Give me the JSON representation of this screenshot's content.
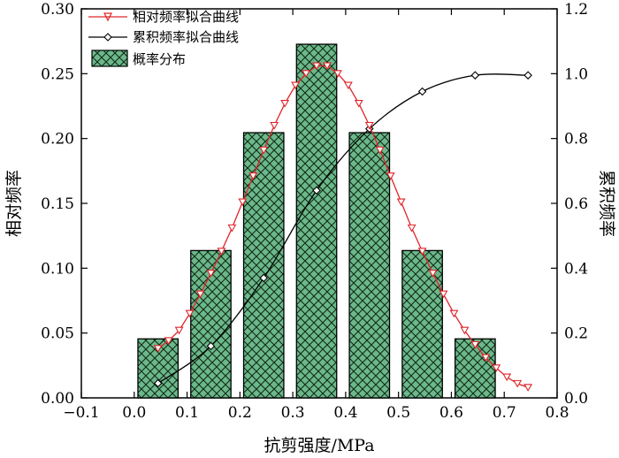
{
  "chart_data": {
    "type": "bar",
    "title": "",
    "xlabel": "抗剪强度/MPa",
    "ylabel_left": "相对频率",
    "ylabel_right": "累积频率",
    "xlim": [
      -0.1,
      0.8
    ],
    "ylim_left": [
      0,
      0.3
    ],
    "ylim_right": [
      0,
      1.2
    ],
    "x_ticks": [
      -0.1,
      0.0,
      0.1,
      0.2,
      0.3,
      0.4,
      0.5,
      0.6,
      0.7,
      0.8
    ],
    "x_tick_labels": [
      "−0.1",
      "0.0",
      "0.1",
      "0.2",
      "0.3",
      "0.4",
      "0.5",
      "0.6",
      "0.7",
      "0.8"
    ],
    "y_left_ticks": [
      0,
      0.05,
      0.1,
      0.15,
      0.2,
      0.25,
      0.3
    ],
    "y_left_tick_labels": [
      "0.00",
      "0.05",
      "0.10",
      "0.15",
      "0.20",
      "0.25",
      "0.30"
    ],
    "y_right_ticks": [
      0,
      0.2,
      0.4,
      0.6,
      0.8,
      1.0,
      1.2
    ],
    "y_right_tick_labels": [
      "0.0",
      "0.2",
      "0.4",
      "0.6",
      "0.8",
      "1.0",
      "1.2"
    ],
    "legend_position": "top-left",
    "series": [
      {
        "name": "相对频率拟合曲线",
        "kind": "line",
        "axis": "left",
        "color": "#e0242a",
        "marker": "triangle-down",
        "x": [
          0.045,
          0.065,
          0.085,
          0.105,
          0.125,
          0.145,
          0.165,
          0.185,
          0.205,
          0.225,
          0.245,
          0.265,
          0.285,
          0.305,
          0.325,
          0.345,
          0.365,
          0.385,
          0.405,
          0.425,
          0.445,
          0.465,
          0.485,
          0.505,
          0.525,
          0.545,
          0.565,
          0.585,
          0.605,
          0.625,
          0.645,
          0.665,
          0.685,
          0.705,
          0.725,
          0.745
        ],
        "y": [
          0.038,
          0.044,
          0.052,
          0.065,
          0.08,
          0.096,
          0.113,
          0.131,
          0.151,
          0.171,
          0.191,
          0.21,
          0.227,
          0.241,
          0.25,
          0.256,
          0.256,
          0.25,
          0.241,
          0.227,
          0.21,
          0.191,
          0.171,
          0.151,
          0.131,
          0.113,
          0.096,
          0.08,
          0.065,
          0.052,
          0.041,
          0.031,
          0.023,
          0.016,
          0.011,
          0.008
        ]
      },
      {
        "name": "累积频率拟合曲线",
        "kind": "line",
        "axis": "right",
        "color": "#000000",
        "marker": "diamond-open",
        "x": [
          0.045,
          0.145,
          0.245,
          0.345,
          0.445,
          0.545,
          0.645,
          0.745
        ],
        "y": [
          0.045,
          0.16,
          0.37,
          0.64,
          0.83,
          0.945,
          0.995,
          0.995
        ]
      },
      {
        "name": "概率分布",
        "kind": "bar",
        "axis": "left",
        "color": "#5aa87a",
        "hatch": "crosshatch",
        "x": [
          0.045,
          0.145,
          0.245,
          0.345,
          0.445,
          0.545,
          0.645
        ],
        "values": [
          0.0455,
          0.1136,
          0.2045,
          0.2727,
          0.2045,
          0.1136,
          0.0455
        ],
        "width": 0.076
      }
    ]
  }
}
